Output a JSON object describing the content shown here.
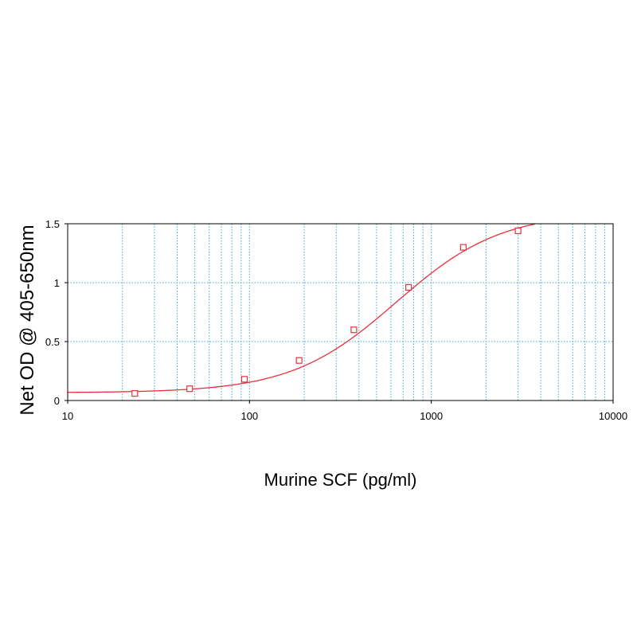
{
  "chart_data": {
    "type": "scatter",
    "title": "",
    "xlabel": "Murine SCF (pg/ml)",
    "ylabel": "Net OD @ 405-650nm",
    "x_scale": "log",
    "xlim": [
      10,
      10000
    ],
    "ylim": [
      0,
      1.5
    ],
    "x_tick_labels": [
      "10",
      "100",
      "1000",
      "10000"
    ],
    "y_tick_labels": [
      "0",
      "0.5",
      "1",
      "1.5"
    ],
    "y_ticks": [
      0,
      0.5,
      1,
      1.5
    ],
    "x_ticks": [
      10,
      100,
      1000,
      10000
    ],
    "grid": true,
    "legend": "none",
    "series": [
      {
        "x": [
          23.4,
          46.9,
          93.8,
          187.5,
          375,
          750,
          1500,
          3000
        ],
        "y": [
          0.06,
          0.1,
          0.18,
          0.34,
          0.6,
          0.96,
          1.3,
          1.44
        ]
      }
    ],
    "fit_curve": {
      "model": "4-parameter logistic",
      "bottom": 0.066,
      "top": 1.6,
      "ec50": 640,
      "hill": 1.5
    },
    "colors": {
      "curve": "#e8303a",
      "marker": "#e8303a",
      "grid": "#3aaed0",
      "frame": "#000000"
    }
  }
}
